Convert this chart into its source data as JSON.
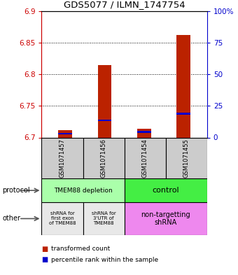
{
  "title": "GDS5077 / ILMN_1747754",
  "samples": [
    "GSM1071457",
    "GSM1071456",
    "GSM1071454",
    "GSM1071455"
  ],
  "red_values": [
    6.712,
    6.815,
    6.714,
    6.862
  ],
  "blue_values": [
    6.706,
    6.727,
    6.709,
    6.738
  ],
  "ylim_left": [
    6.7,
    6.9
  ],
  "ylim_right": [
    0,
    100
  ],
  "yticks_left": [
    6.7,
    6.75,
    6.8,
    6.85,
    6.9
  ],
  "yticks_right": [
    0,
    25,
    50,
    75,
    100
  ],
  "ytick_labels_right": [
    "0",
    "25",
    "50",
    "75",
    "100%"
  ],
  "gridlines": [
    6.75,
    6.8,
    6.85
  ],
  "bar_base": 6.7,
  "protocol_labels": [
    "TMEM88 depletion",
    "control"
  ],
  "other_labels": [
    "shRNA for\nfirst exon\nof TMEM88",
    "shRNA for\n3'UTR of\nTMEM88",
    "non-targetting\nshRNA"
  ],
  "protocol_colors": [
    "#aaffaa",
    "#44ee44"
  ],
  "other_colors": [
    "#e8e8e8",
    "#e8e8e8",
    "#ee88ee"
  ],
  "legend_red": "transformed count",
  "legend_blue": "percentile rank within the sample",
  "left_label_color": "#cc0000",
  "right_label_color": "#0000cc",
  "bar_red_color": "#bb2200",
  "bar_blue_color": "#0000cc",
  "sample_bg_color": "#cccccc",
  "bar_width": 0.35
}
